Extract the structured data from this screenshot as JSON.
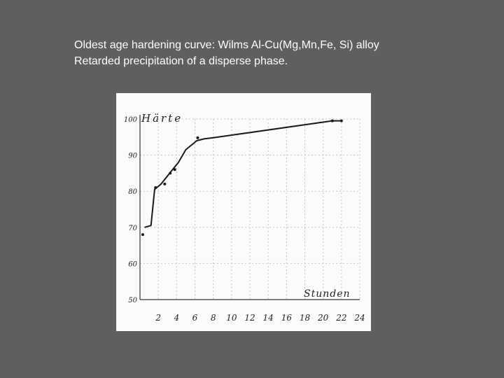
{
  "caption": {
    "line1": "Oldest age hardening curve: Wilms Al-Cu(Mg,Mn,Fe, Si) alloy",
    "line2": "Retarded precipitation of a disperse phase."
  },
  "chart_data": {
    "type": "line",
    "ylabel": "Härte",
    "xlabel": "Stunden",
    "x_ticks": [
      "2",
      "4",
      "6",
      "8",
      "10",
      "12",
      "14",
      "16",
      "18",
      "20",
      "22",
      "24"
    ],
    "y_ticks": [
      "100",
      "90",
      "80",
      "70",
      "60",
      "50"
    ],
    "xlim": [
      0,
      24
    ],
    "ylim": [
      50,
      100
    ],
    "grid": true,
    "series": [
      {
        "x": [
          0.5,
          1.2,
          1.6,
          2.3,
          3.4,
          4.2,
          5.0,
          6.2,
          7.0,
          8.0,
          21.0,
          22.0
        ],
        "y": [
          70.0,
          70.5,
          80.5,
          82.0,
          85.5,
          88.0,
          91.5,
          94.0,
          94.5,
          94.8,
          99.5,
          99.5
        ]
      }
    ],
    "scatter_points": {
      "x": [
        0.3,
        1.7,
        2.7,
        3.3,
        3.8,
        6.3,
        21.0,
        22.0
      ],
      "y": [
        68.0,
        81.0,
        82.0,
        85.0,
        86.0,
        94.8,
        99.5,
        99.5
      ]
    },
    "colors": {
      "curve": "#1a1a1a",
      "grid": "#c4c4c4",
      "background": "#fbfbfb"
    }
  }
}
